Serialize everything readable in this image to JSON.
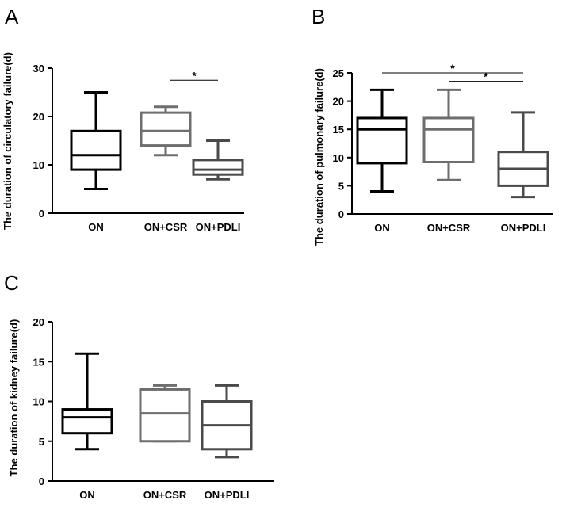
{
  "chart_data": [
    {
      "panel": "A",
      "type": "box",
      "title": "",
      "xlabel": "",
      "ylabel": "The duration of  circulatory failure(d)",
      "ylim": [
        0,
        30
      ],
      "yticks": [
        0,
        10,
        20,
        30
      ],
      "categories": [
        "ON",
        "ON+CSR",
        "ON+PDLI"
      ],
      "colors": [
        "#000000",
        "#6e6e6e",
        "#4a4a4a"
      ],
      "boxes": [
        {
          "min": 5,
          "q1": 9,
          "median": 12,
          "q3": 17,
          "max": 25
        },
        {
          "min": 12,
          "q1": 14,
          "median": 17,
          "q3": 20.8,
          "max": 22
        },
        {
          "min": 7,
          "q1": 8,
          "median": 9,
          "q3": 11,
          "max": 15
        }
      ],
      "significance": [
        {
          "from": 1,
          "to": 2,
          "y": 27.5,
          "label": "*"
        }
      ]
    },
    {
      "panel": "B",
      "type": "box",
      "title": "",
      "xlabel": "",
      "ylabel": "The duration of  pulmonary failure(d)",
      "ylim": [
        0,
        25
      ],
      "yticks": [
        0,
        5,
        10,
        15,
        20,
        25
      ],
      "categories": [
        "ON",
        "ON+CSR",
        "ON+PDLI"
      ],
      "colors": [
        "#000000",
        "#6e6e6e",
        "#4a4a4a"
      ],
      "boxes": [
        {
          "min": 4,
          "q1": 9,
          "median": 15,
          "q3": 17,
          "max": 22
        },
        {
          "min": 6,
          "q1": 9.2,
          "median": 15,
          "q3": 17,
          "max": 22
        },
        {
          "min": 3,
          "q1": 5,
          "median": 8,
          "q3": 11,
          "max": 18
        }
      ],
      "significance": [
        {
          "from": 0,
          "to": 2,
          "y": 25,
          "label": "*"
        },
        {
          "from": 1,
          "to": 2,
          "y": 23.5,
          "label": "*"
        }
      ]
    },
    {
      "panel": "C",
      "type": "box",
      "title": "",
      "xlabel": "",
      "ylabel": "The duration of  kidney failure(d)",
      "ylim": [
        0,
        20
      ],
      "yticks": [
        0,
        5,
        10,
        15,
        20
      ],
      "categories": [
        "ON",
        "ON+CSR",
        "ON+PDLI"
      ],
      "colors": [
        "#000000",
        "#6e6e6e",
        "#4a4a4a"
      ],
      "boxes": [
        {
          "min": 4,
          "q1": 6,
          "median": 8,
          "q3": 9,
          "max": 16
        },
        {
          "min": 5,
          "q1": 5,
          "median": 8.5,
          "q3": 11.5,
          "max": 12
        },
        {
          "min": 3,
          "q1": 4,
          "median": 7,
          "q3": 10,
          "max": 12
        }
      ],
      "significance": []
    }
  ]
}
